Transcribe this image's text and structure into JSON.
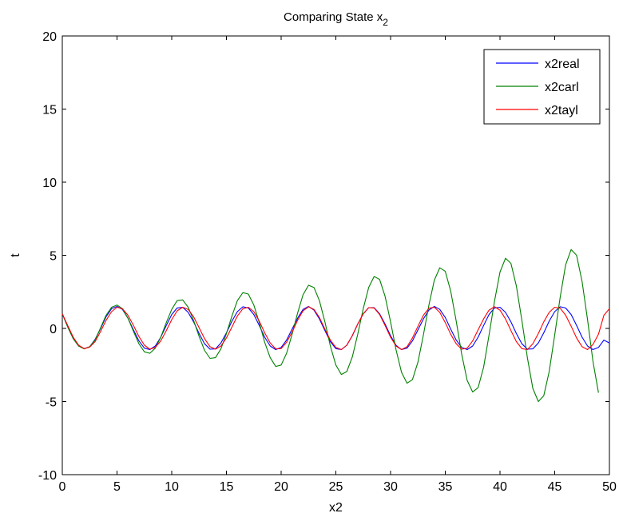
{
  "chart_data": {
    "type": "line",
    "title": "Comparing State x",
    "title_subscript": "2",
    "xlabel": "x2",
    "ylabel": "t",
    "xlim": [
      0,
      50
    ],
    "ylim": [
      -10,
      20
    ],
    "xticks": [
      0,
      5,
      10,
      15,
      20,
      25,
      30,
      35,
      40,
      45,
      50
    ],
    "yticks": [
      -10,
      -5,
      0,
      5,
      10,
      15,
      20
    ],
    "grid": false,
    "legend_position": "top-right",
    "sample_step": 0.5,
    "series": [
      {
        "name": "x2real",
        "color": "#0000ff",
        "x_start": 0,
        "values": [
          1.0,
          0.1,
          -0.7,
          -1.2,
          -1.38,
          -1.25,
          -0.75,
          0.0,
          0.8,
          1.35,
          1.5,
          1.3,
          0.7,
          -0.1,
          -0.85,
          -1.35,
          -1.45,
          -1.2,
          -0.6,
          0.2,
          0.95,
          1.4,
          1.45,
          1.1,
          0.45,
          -0.35,
          -1.05,
          -1.42,
          -1.4,
          -1.0,
          -0.3,
          0.5,
          1.15,
          1.48,
          1.4,
          0.95,
          0.2,
          -0.6,
          -1.2,
          -1.45,
          -1.3,
          -0.8,
          -0.05,
          0.7,
          1.3,
          1.5,
          1.25,
          0.65,
          -0.15,
          -0.9,
          -1.38,
          -1.45,
          -1.15,
          -0.5,
          0.3,
          1.0,
          1.42,
          1.42,
          1.0,
          0.3,
          -0.5,
          -1.15,
          -1.45,
          -1.35,
          -0.85,
          -0.1,
          0.65,
          1.25,
          1.5,
          1.3,
          0.75,
          -0.05,
          -0.8,
          -1.3,
          -1.45,
          -1.2,
          -0.6,
          0.2,
          0.95,
          1.4,
          1.45,
          1.1,
          0.45,
          -0.35,
          -1.05,
          -1.42,
          -1.4,
          -1.0,
          -0.3,
          0.5,
          1.15,
          1.48,
          1.4,
          0.95,
          0.2,
          -0.6,
          -1.2,
          -1.45,
          -1.3,
          -0.8,
          -1.0
        ]
      },
      {
        "name": "x2carl",
        "color": "#008000",
        "x_start": 0,
        "values": [
          1.0,
          0.1,
          -0.7,
          -1.2,
          -1.4,
          -1.25,
          -0.8,
          0.05,
          0.9,
          1.45,
          1.6,
          1.35,
          0.7,
          -0.2,
          -1.05,
          -1.6,
          -1.7,
          -1.35,
          -0.6,
          0.4,
          1.3,
          1.9,
          1.95,
          1.45,
          0.55,
          -0.55,
          -1.5,
          -2.05,
          -2.0,
          -1.4,
          -0.35,
          0.85,
          1.9,
          2.45,
          2.35,
          1.6,
          0.4,
          -0.95,
          -2.0,
          -2.6,
          -2.5,
          -1.7,
          -0.4,
          1.05,
          2.3,
          2.95,
          2.8,
          1.9,
          0.45,
          -1.2,
          -2.5,
          -3.15,
          -2.95,
          -1.95,
          -0.4,
          1.35,
          2.8,
          3.55,
          3.35,
          2.2,
          0.45,
          -1.45,
          -3.0,
          -3.75,
          -3.5,
          -2.3,
          -0.45,
          1.6,
          3.3,
          4.15,
          3.9,
          2.55,
          0.5,
          -1.75,
          -3.55,
          -4.35,
          -4.05,
          -2.65,
          -0.45,
          1.85,
          3.85,
          4.8,
          4.45,
          2.9,
          0.55,
          -2.0,
          -4.1,
          -5.0,
          -4.6,
          -2.95,
          -0.45,
          2.15,
          4.35,
          5.4,
          5.0,
          3.2,
          0.6,
          -2.25,
          -4.4
        ]
      },
      {
        "name": "x2tayl",
        "color": "#ff0000",
        "x_start": 0,
        "values": [
          1.0,
          0.2,
          -0.6,
          -1.15,
          -1.38,
          -1.28,
          -0.9,
          -0.2,
          0.55,
          1.15,
          1.45,
          1.35,
          0.9,
          0.2,
          -0.55,
          -1.15,
          -1.42,
          -1.3,
          -0.85,
          -0.15,
          0.6,
          1.2,
          1.45,
          1.3,
          0.8,
          0.05,
          -0.7,
          -1.25,
          -1.42,
          -1.2,
          -0.65,
          0.1,
          0.85,
          1.35,
          1.45,
          1.15,
          0.5,
          -0.3,
          -1.0,
          -1.4,
          -1.38,
          -0.95,
          -0.25,
          0.55,
          1.2,
          1.48,
          1.3,
          0.75,
          -0.05,
          -0.8,
          -1.3,
          -1.45,
          -1.15,
          -0.5,
          0.3,
          1.0,
          1.42,
          1.4,
          0.95,
          0.2,
          -0.6,
          -1.2,
          -1.45,
          -1.25,
          -0.65,
          0.15,
          0.9,
          1.38,
          1.45,
          1.1,
          0.4,
          -0.4,
          -1.05,
          -1.42,
          -1.35,
          -0.85,
          -0.1,
          0.65,
          1.25,
          1.48,
          1.25,
          0.65,
          -0.15,
          -0.9,
          -1.38,
          -1.45,
          -1.05,
          -0.35,
          0.45,
          1.1,
          1.45,
          1.38,
          0.9,
          0.15,
          -0.65,
          -1.25,
          -1.45,
          -1.1,
          -0.4,
          0.9,
          1.35
        ]
      }
    ]
  }
}
